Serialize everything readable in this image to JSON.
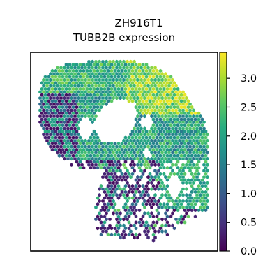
{
  "chart_data": {
    "type": "scatter",
    "title": "ZH916T1",
    "subtitle": "TUBB2B expression",
    "xlabel": "",
    "ylabel": "",
    "colorbar": {
      "label": "",
      "colormap": "viridis",
      "range": [
        0.0,
        3.45
      ],
      "ticks": [
        0.0,
        0.5,
        1.0,
        1.5,
        2.0,
        2.5,
        3.0
      ],
      "tick_labels": [
        "0.0",
        "0.5",
        "1.0",
        "1.5",
        "2.0",
        "2.5",
        "3.0"
      ]
    },
    "axes_ticks_visible": false,
    "grid": false,
    "marker": "hexagon"
  }
}
